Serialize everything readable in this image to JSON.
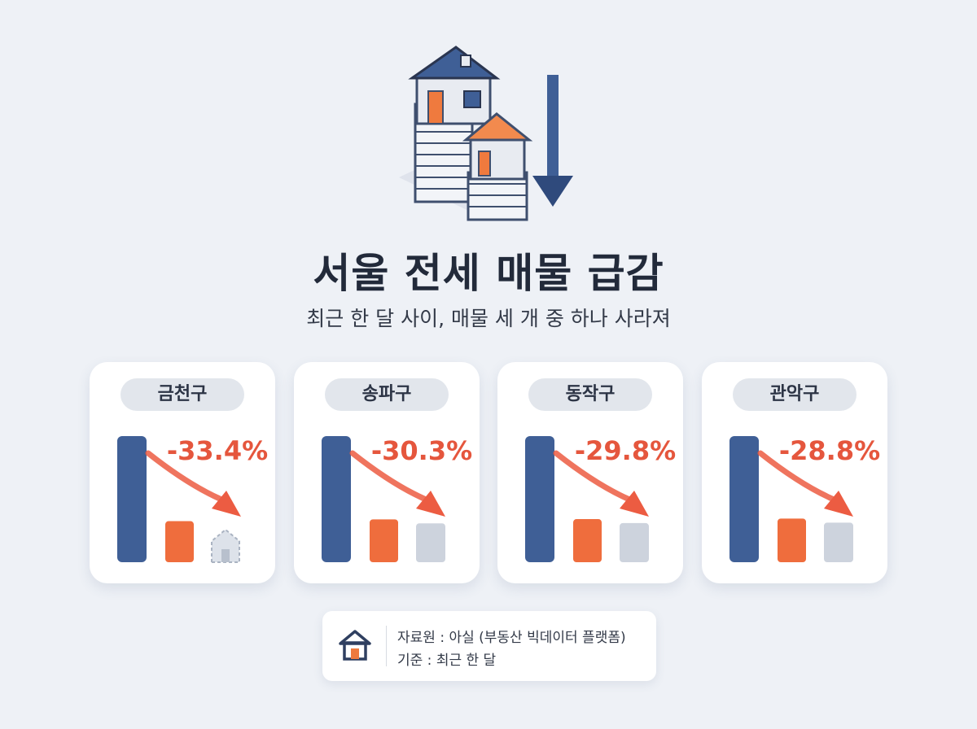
{
  "title": "서울 전세 매물 급감",
  "subtitle": "최근 한 달 사이, 매물 세 개 중 하나 사라져",
  "colors": {
    "blue": "#3f5f96",
    "orange": "#ef6d3d",
    "gray": "#cdd3dd",
    "arrow": "#ec5c42",
    "change_text": "#e5563d"
  },
  "chart_data": [
    {
      "type": "bar",
      "district": "금천구",
      "change_label": "-33.4%",
      "change": -33.4,
      "marker": "house-outline"
    },
    {
      "type": "bar",
      "district": "송파구",
      "change_label": "-30.3%",
      "change": -30.3,
      "marker": "bar"
    },
    {
      "type": "bar",
      "district": "동작구",
      "change_label": "-29.8%",
      "change": -29.8,
      "marker": "bar"
    },
    {
      "type": "bar",
      "district": "관악구",
      "change_label": "-28.8%",
      "change": -28.8,
      "marker": "bar"
    }
  ],
  "source": {
    "line1": "자료원 : 아실 (부동산 빅데이터 플랫폼)",
    "line2": "기준 : 최근 한 달",
    "icon": "house-icon"
  }
}
